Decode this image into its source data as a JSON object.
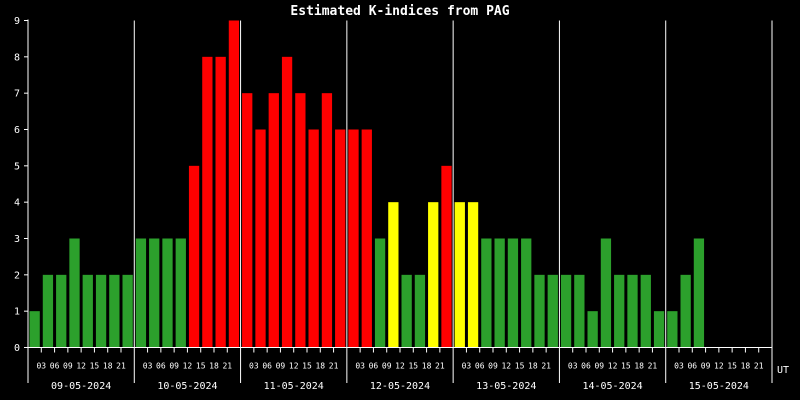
{
  "chart_data": {
    "type": "bar",
    "title": "Estimated K-indices from PAG",
    "xlabel": "",
    "ylabel": "",
    "x_unit": "UT",
    "ylim": [
      0,
      9
    ],
    "yticks": [
      "0",
      "1",
      "2",
      "3",
      "4",
      "5",
      "6",
      "7",
      "8",
      "9"
    ],
    "hour_labels": [
      "03",
      "06",
      "09",
      "12",
      "15",
      "18",
      "21"
    ],
    "dates": [
      "09-05-2024",
      "10-05-2024",
      "11-05-2024",
      "12-05-2024",
      "13-05-2024",
      "14-05-2024",
      "15-05-2024"
    ],
    "values": [
      [
        1,
        2,
        2,
        3,
        2,
        2,
        2,
        2
      ],
      [
        3,
        3,
        3,
        3,
        5,
        8,
        8,
        9
      ],
      [
        7,
        6,
        7,
        8,
        7,
        6,
        7,
        6
      ],
      [
        6,
        6,
        3,
        4,
        2,
        2,
        4,
        5
      ],
      [
        4,
        4,
        3,
        3,
        3,
        3,
        2,
        2
      ],
      [
        2,
        2,
        1,
        3,
        2,
        2,
        2,
        1
      ],
      [
        1,
        2,
        3,
        null,
        null,
        null,
        null,
        null
      ]
    ],
    "color_scale": {
      "green": "#2ca02c",
      "yellow": "#ffff00",
      "red": "#ff0000"
    },
    "color_thresholds": {
      "yellow_at": 4,
      "red_at": 5
    },
    "grid": false,
    "legend": "none"
  }
}
